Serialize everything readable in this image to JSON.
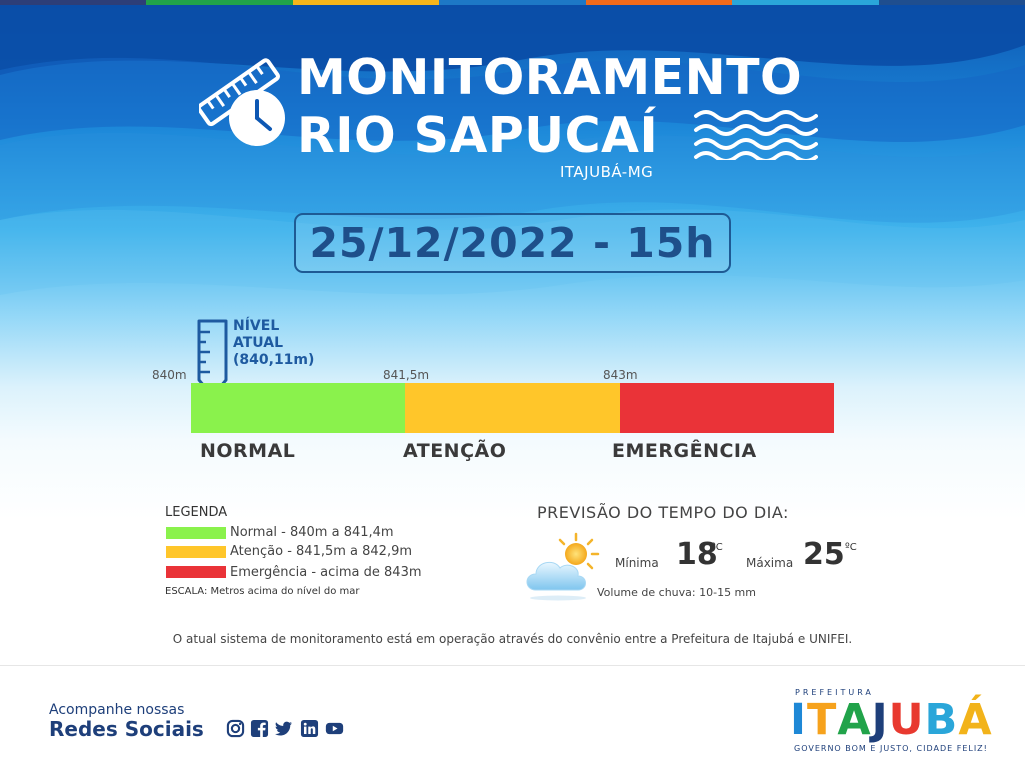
{
  "header": {
    "title_line1": "MONITORAMENTO",
    "title_line2": "RIO SAPUCAÍ",
    "subtitle": "ITAJUBÁ-MG"
  },
  "date_time": "25/12/2022 - 15h",
  "level": {
    "label_line1": "NÍVEL",
    "label_line2": "ATUAL",
    "label_line3": "(840,11m)",
    "value_m": 840.11,
    "ticks": [
      "840m",
      "841,5m",
      "843m"
    ],
    "categories": [
      "NORMAL",
      "ATENÇÃO",
      "EMERGÊNCIA"
    ],
    "colors": {
      "normal": "#8af24c",
      "attention": "#ffc62a",
      "emergency": "#ea3338"
    }
  },
  "legend": {
    "title": "LEGENDA",
    "items": [
      {
        "text": "Normal - 840m a 841,4m",
        "color": "#8af24c"
      },
      {
        "text": "Atenção - 841,5m a 842,9m",
        "color": "#ffc62a"
      },
      {
        "text": "Emergência - acima de 843m",
        "color": "#ea3338"
      }
    ],
    "scale_note": "ESCALA: Metros acima do nível do mar"
  },
  "forecast": {
    "title": "PREVISÃO DO TEMPO DO DIA:",
    "icon": "partly-cloudy-icon",
    "min_label": "Mínima",
    "min_value": "18",
    "max_label": "Máxima",
    "max_value": "25",
    "unit": "ºC",
    "rain": "Volume de chuva: 10-15 mm"
  },
  "note": "O atual sistema de monitoramento está em operação através do convênio entre a Prefeitura de Itajubá e UNIFEI.",
  "footer": {
    "follow_small": "Acompanhe nossas",
    "follow_big": "Redes Sociais",
    "social_icons": [
      "instagram-icon",
      "facebook-icon",
      "twitter-icon",
      "linkedin-icon",
      "youtube-icon"
    ],
    "logo_top": "PREFEITURA",
    "logo_name": "ITAJUBÁ",
    "logo_tagline": "GOVERNO BOM E JUSTO, CIDADE FELIZ!"
  },
  "accent_colors": [
    "#1e4f8a",
    "#0d57b3",
    "#3fb3ec"
  ]
}
